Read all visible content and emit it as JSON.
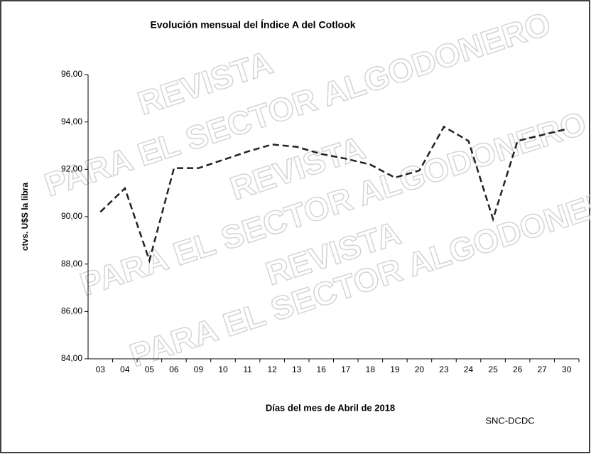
{
  "chart_data": {
    "type": "line",
    "title": "Evolución mensual del Índice A del Cotlook",
    "y_label": "ctvs. U$S la libra",
    "x_label": "Días del mes de Abril de 2018",
    "source": "SNC-DCDC",
    "watermarks": [
      "REVISTA",
      "PARA EL SECTOR ALGODONERO",
      "REVISTA",
      "PARA EL SECTOR ALGODONERO",
      "REVISTA",
      "PARA EL SECTOR ALGODONERO"
    ],
    "categories": [
      "03",
      "04",
      "05",
      "06",
      "09",
      "10",
      "11",
      "12",
      "13",
      "16",
      "17",
      "18",
      "19",
      "20",
      "23",
      "24",
      "25",
      "26",
      "27",
      "30"
    ],
    "values": [
      90.2,
      91.2,
      88.15,
      92.05,
      92.05,
      92.4,
      92.75,
      93.05,
      92.95,
      92.65,
      92.45,
      92.2,
      91.65,
      91.95,
      93.8,
      93.2,
      89.9,
      93.2,
      93.45,
      93.7
    ],
    "color": "#222222",
    "dashed": true,
    "ylim": [
      84,
      96
    ],
    "yticks": [
      {
        "value": 84,
        "label": "84,00"
      },
      {
        "value": 86,
        "label": "86,00"
      },
      {
        "value": 88,
        "label": "88,00"
      },
      {
        "value": 90,
        "label": "90,00"
      },
      {
        "value": 92,
        "label": "92,00"
      },
      {
        "value": 94,
        "label": "94,00"
      },
      {
        "value": 96,
        "label": "96,00"
      }
    ]
  }
}
